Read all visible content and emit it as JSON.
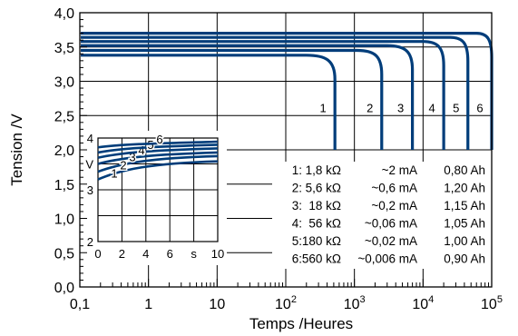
{
  "chart_data": {
    "type": "line",
    "xlabel": "Temps /Heures",
    "ylabel": "Tension /V",
    "xscale": "log",
    "xlim": [
      0.1,
      100000
    ],
    "ylim": [
      0.0,
      4.0
    ],
    "y_ticks": [
      "0,0",
      "0,5",
      "1,0",
      "1,5",
      "2,0",
      "2,5",
      "3,0",
      "3,5",
      "4,0"
    ],
    "x_tick_values": [
      0.1,
      1,
      10,
      100,
      1000,
      10000,
      100000
    ],
    "x_ticks": [
      {
        "base": "0,1",
        "exp": ""
      },
      {
        "base": "1",
        "exp": ""
      },
      {
        "base": "10",
        "exp": ""
      },
      {
        "base": "10",
        "exp": "2"
      },
      {
        "base": "10",
        "exp": "3"
      },
      {
        "base": "10",
        "exp": "4"
      },
      {
        "base": "10",
        "exp": "5"
      }
    ],
    "grid": true,
    "line_color": "#003d7a",
    "series": [
      {
        "name": "1",
        "plateau_v": 3.38,
        "knee_hours": 200,
        "end_hours": 520
      },
      {
        "name": "2",
        "plateau_v": 3.45,
        "knee_hours": 1100,
        "end_hours": 2500
      },
      {
        "name": "3",
        "plateau_v": 3.52,
        "knee_hours": 3000,
        "end_hours": 7000
      },
      {
        "name": "4",
        "plateau_v": 3.58,
        "knee_hours": 10000,
        "end_hours": 20000
      },
      {
        "name": "5",
        "plateau_v": 3.64,
        "knee_hours": 25000,
        "end_hours": 45000
      },
      {
        "name": "6",
        "plateau_v": 3.7,
        "knee_hours": 60000,
        "end_hours": 100000
      }
    ],
    "legend": [
      {
        "id": "1:",
        "resistance": "1,8 kΩ",
        "current": "~2 mA",
        "capacity": "0,80 Ah"
      },
      {
        "id": "2:",
        "resistance": "5,6 kΩ",
        "current": "~0,6 mA",
        "capacity": "1,20 Ah"
      },
      {
        "id": "3:",
        "resistance": "18 kΩ",
        "current": "~0,2 mA",
        "capacity": "1,15 Ah"
      },
      {
        "id": "4:",
        "resistance": "56 kΩ",
        "current": "~0,06 mA",
        "capacity": "1,05 Ah"
      },
      {
        "id": "5:",
        "resistance": "180 kΩ",
        "current": "~0,02 mA",
        "capacity": "1,00 Ah"
      },
      {
        "id": "6:",
        "resistance": "560 kΩ",
        "current": "~0,006 mA",
        "capacity": "0,90 Ah"
      }
    ],
    "inset": {
      "xlim": [
        0,
        10
      ],
      "ylim": [
        2,
        4
      ],
      "x_ticks": [
        "0",
        "2",
        "4",
        "6",
        "s",
        "10"
      ],
      "y_ticks": [
        "2",
        "3",
        "4"
      ],
      "y_unit": "V",
      "series": [
        {
          "name": "1",
          "start_v": 3.2,
          "end_v": 3.55
        },
        {
          "name": "2",
          "start_v": 3.35,
          "end_v": 3.65
        },
        {
          "name": "3",
          "start_v": 3.5,
          "end_v": 3.72
        },
        {
          "name": "4",
          "start_v": 3.62,
          "end_v": 3.8
        },
        {
          "name": "5",
          "start_v": 3.72,
          "end_v": 3.87
        },
        {
          "name": "6",
          "start_v": 3.82,
          "end_v": 3.93
        }
      ]
    }
  }
}
